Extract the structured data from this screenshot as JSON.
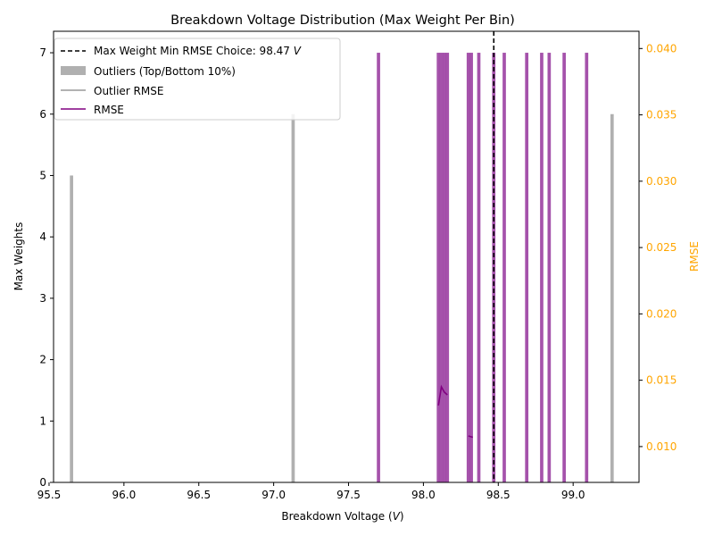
{
  "chart_data": {
    "type": "bar",
    "title": "Breakdown Voltage Distribution (Max Weight Per Bin)",
    "xlabel": "Breakdown Voltage (",
    "xlabel_unit": "V",
    "xlabel_close": ")",
    "ylabel": "Max Weights",
    "ylabel_right": "RMSE",
    "xlim": [
      95.53,
      99.44
    ],
    "ylim": [
      0,
      7.35
    ],
    "ylim_right": [
      0.0073,
      0.0413
    ],
    "xticks": [
      "95.5",
      "96.0",
      "96.5",
      "97.0",
      "97.5",
      "98.0",
      "98.5",
      "99.0"
    ],
    "yticks": [
      "0",
      "1",
      "2",
      "3",
      "4",
      "5",
      "6",
      "7"
    ],
    "yticks_right": [
      "0.010",
      "0.015",
      "0.020",
      "0.025",
      "0.030",
      "0.035",
      "0.040"
    ],
    "bar_width": 0.022,
    "outliers": {
      "name": "Outliers (Top/Bottom 10%)",
      "color": "#b0b0b0",
      "x": [
        95.65,
        97.13,
        99.26
      ],
      "values": [
        5,
        6,
        6
      ]
    },
    "bars": {
      "color": "#9b3fa2",
      "x": [
        97.7,
        98.1,
        98.12,
        98.14,
        98.16,
        98.3,
        98.32,
        98.37,
        98.47,
        98.54,
        98.69,
        98.79,
        98.84,
        98.94,
        99.09
      ],
      "values": [
        7,
        7,
        7,
        7,
        7,
        7,
        7,
        7,
        7,
        7,
        7,
        7,
        7,
        7,
        7
      ]
    },
    "choice": {
      "label": "Max Weight Min RMSE Choice: 98.47 ",
      "label_unit": "V",
      "x": 98.47,
      "color": "#000000"
    },
    "rmse_series": [
      {
        "name": "RMSE",
        "color": "#800080",
        "segments": [
          [
            [
              98.1,
              0.0131
            ],
            [
              98.12,
              0.0145
            ],
            [
              98.14,
              0.0141
            ],
            [
              98.16,
              0.0139
            ]
          ],
          [
            [
              98.3,
              0.0108
            ],
            [
              98.33,
              0.0107
            ]
          ]
        ]
      }
    ],
    "outlier_rmse": {
      "name": "Outlier RMSE",
      "color": "#999999"
    },
    "legend_placement": "top-left",
    "grid": false
  }
}
